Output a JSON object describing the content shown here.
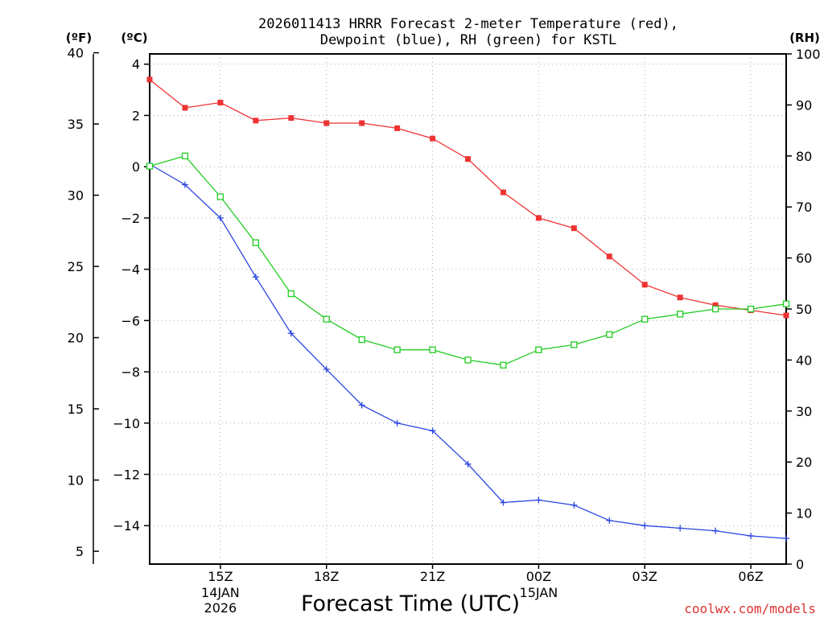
{
  "chart_data": {
    "type": "line",
    "title_line1": "2026011413 HRRR Forecast 2-meter Temperature (red),",
    "title_line2": "Dewpoint (blue), RH (green) for KSTL",
    "xlabel": "Forecast Time (UTC)",
    "unit_f": "(ºF)",
    "unit_c": "(ºC)",
    "unit_rh": "(RH)",
    "credit": "coolwx.com/models",
    "colors": {
      "temperature": "#ee3333",
      "dewpoint": "#2a44e0",
      "rh": "#22cc22"
    },
    "x_hours": [
      13,
      14,
      15,
      16,
      17,
      18,
      19,
      20,
      21,
      22,
      23,
      24,
      25,
      26,
      27,
      28,
      29,
      30,
      31
    ],
    "xlim": [
      13,
      31
    ],
    "x_ticks": [
      {
        "hour": 15,
        "label": "15Z",
        "date": "14JAN",
        "year": "2026"
      },
      {
        "hour": 18,
        "label": "18Z"
      },
      {
        "hour": 21,
        "label": "21Z"
      },
      {
        "hour": 24,
        "label": "00Z",
        "date": "15JAN"
      },
      {
        "hour": 27,
        "label": "03Z"
      },
      {
        "hour": 30,
        "label": "06Z"
      }
    ],
    "ylim_c": [
      -15.5,
      4.4
    ],
    "y_ticks_c": [
      4,
      2,
      0,
      -2,
      -4,
      -6,
      -8,
      -10,
      -12,
      -14
    ],
    "y_ticks_f": [
      40,
      35,
      30,
      25,
      20,
      15,
      10,
      5
    ],
    "ylim_rh": [
      0,
      100
    ],
    "y_ticks_rh": [
      100,
      90,
      80,
      70,
      60,
      50,
      40,
      30,
      20,
      10,
      0
    ],
    "series": [
      {
        "name": "Temperature",
        "axis": "c",
        "marker": "filled-square",
        "values": [
          3.4,
          2.3,
          2.5,
          1.8,
          1.9,
          1.7,
          1.7,
          1.5,
          1.1,
          0.3,
          -1.0,
          -2.0,
          -2.4,
          -3.5,
          -4.6,
          -5.1,
          -5.4,
          -5.6,
          -5.8
        ]
      },
      {
        "name": "Dewpoint",
        "axis": "c",
        "marker": "plus",
        "values": [
          0.1,
          -0.7,
          -2.0,
          -4.3,
          -6.5,
          -7.9,
          -9.3,
          -10.0,
          -10.3,
          -11.6,
          -13.1,
          -13.0,
          -13.2,
          -13.8,
          -14.0,
          -14.1,
          -14.2,
          -14.4,
          -14.5
        ]
      },
      {
        "name": "RH",
        "axis": "rh",
        "marker": "open-square",
        "values": [
          78,
          80,
          72,
          63,
          53,
          48,
          44,
          42,
          42,
          40,
          39,
          42,
          43,
          45,
          48,
          49,
          50,
          50,
          51
        ]
      }
    ]
  }
}
